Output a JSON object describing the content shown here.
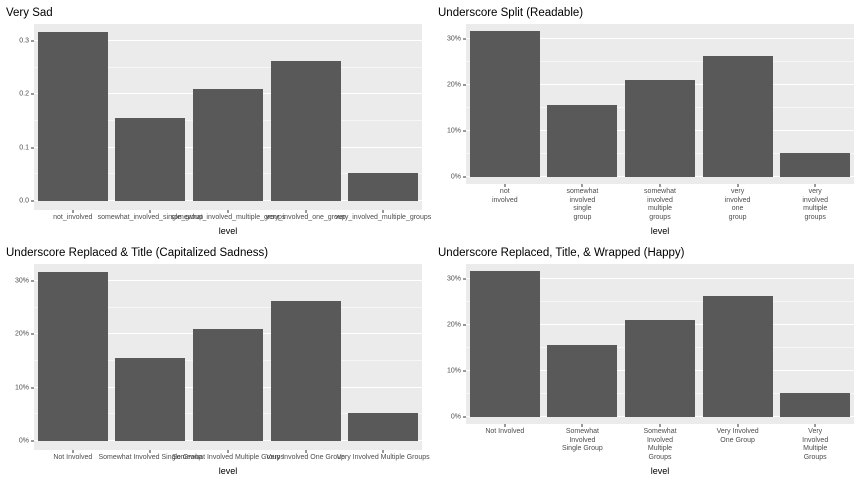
{
  "page": {
    "background": "#FFFFFF"
  },
  "chart_style": {
    "panel_bg": "#EBEBEB",
    "grid_major": "#FFFFFF",
    "grid_minor": "#F4F4F4",
    "bar_color": "#595959",
    "axis_text_color": "#4D4D4D",
    "tick_mark_color": "#333333",
    "title_color": "#000000"
  },
  "chart_data": [
    {
      "type": "bar",
      "title": "Very Sad",
      "xlabel": "level",
      "ylabel": "",
      "categories": [
        "not_involved",
        "somewhat_involved_single_group",
        "somewhat_involved_multiple_groups",
        "very_involved_one_group",
        "very_involved_multiple_groups"
      ],
      "values": [
        0.316,
        0.155,
        0.21,
        0.262,
        0.052
      ],
      "ylim": [
        -0.0158,
        0.3318
      ],
      "y_ticks": [
        {
          "v": 0.0,
          "label": "0.0"
        },
        {
          "v": 0.1,
          "label": "0.1"
        },
        {
          "v": 0.2,
          "label": "0.2"
        },
        {
          "v": 0.3,
          "label": "0.3"
        }
      ],
      "x_tick_labels": [
        "not_involved",
        "somewhat_involved_single_group",
        "somewhat_involved_multiple_groups",
        "very_involved_one_group",
        "very_involved_multiple_groups"
      ],
      "wrap": false
    },
    {
      "type": "bar",
      "title": "Underscore Split (Readable)",
      "xlabel": "level",
      "ylabel": "",
      "categories": [
        "not_involved",
        "somewhat_involved_single_group",
        "somewhat_involved_multiple_groups",
        "very_involved_one_group",
        "very_involved_multiple_groups"
      ],
      "values": [
        0.316,
        0.155,
        0.21,
        0.262,
        0.052
      ],
      "ylim": [
        -0.0158,
        0.3318
      ],
      "y_ticks": [
        {
          "v": 0.0,
          "label": "0%"
        },
        {
          "v": 0.1,
          "label": "10%"
        },
        {
          "v": 0.2,
          "label": "20%"
        },
        {
          "v": 0.3,
          "label": "30%"
        }
      ],
      "x_tick_labels": [
        "not\ninvolved",
        "somewhat\ninvolved\nsingle\ngroup",
        "somewhat\ninvolved\nmultiple\ngroups",
        "very\ninvolved\none\ngroup",
        "very\ninvolved\nmultiple\ngroups"
      ],
      "wrap": true
    },
    {
      "type": "bar",
      "title": "Underscore Replaced & Title (Capitalized Sadness)",
      "xlabel": "level",
      "ylabel": "",
      "categories": [
        "not_involved",
        "somewhat_involved_single_group",
        "somewhat_involved_multiple_groups",
        "very_involved_one_group",
        "very_involved_multiple_groups"
      ],
      "values": [
        0.316,
        0.155,
        0.21,
        0.262,
        0.052
      ],
      "ylim": [
        -0.0158,
        0.3318
      ],
      "y_ticks": [
        {
          "v": 0.0,
          "label": "0%"
        },
        {
          "v": 0.1,
          "label": "10%"
        },
        {
          "v": 0.2,
          "label": "20%"
        },
        {
          "v": 0.3,
          "label": "30%"
        }
      ],
      "x_tick_labels": [
        "Not Involved",
        "Somewhat Involved Single Group",
        "Somewhat Involved Multiple Groups",
        "Very Involved One Group",
        "Very Involved Multiple Groups"
      ],
      "wrap": false
    },
    {
      "type": "bar",
      "title": "Underscore Replaced, Title, & Wrapped (Happy)",
      "xlabel": "level",
      "ylabel": "",
      "categories": [
        "not_involved",
        "somewhat_involved_single_group",
        "somewhat_involved_multiple_groups",
        "very_involved_one_group",
        "very_involved_multiple_groups"
      ],
      "values": [
        0.316,
        0.155,
        0.21,
        0.262,
        0.052
      ],
      "ylim": [
        -0.0158,
        0.3318
      ],
      "y_ticks": [
        {
          "v": 0.0,
          "label": "0%"
        },
        {
          "v": 0.1,
          "label": "10%"
        },
        {
          "v": 0.2,
          "label": "20%"
        },
        {
          "v": 0.3,
          "label": "30%"
        }
      ],
      "x_tick_labels": [
        "Not Involved",
        "Somewhat\nInvolved\nSingle Group",
        "Somewhat\nInvolved\nMultiple\nGroups",
        "Very Involved\nOne Group",
        "Very Involved\nMultiple\nGroups"
      ],
      "wrap": true
    }
  ]
}
